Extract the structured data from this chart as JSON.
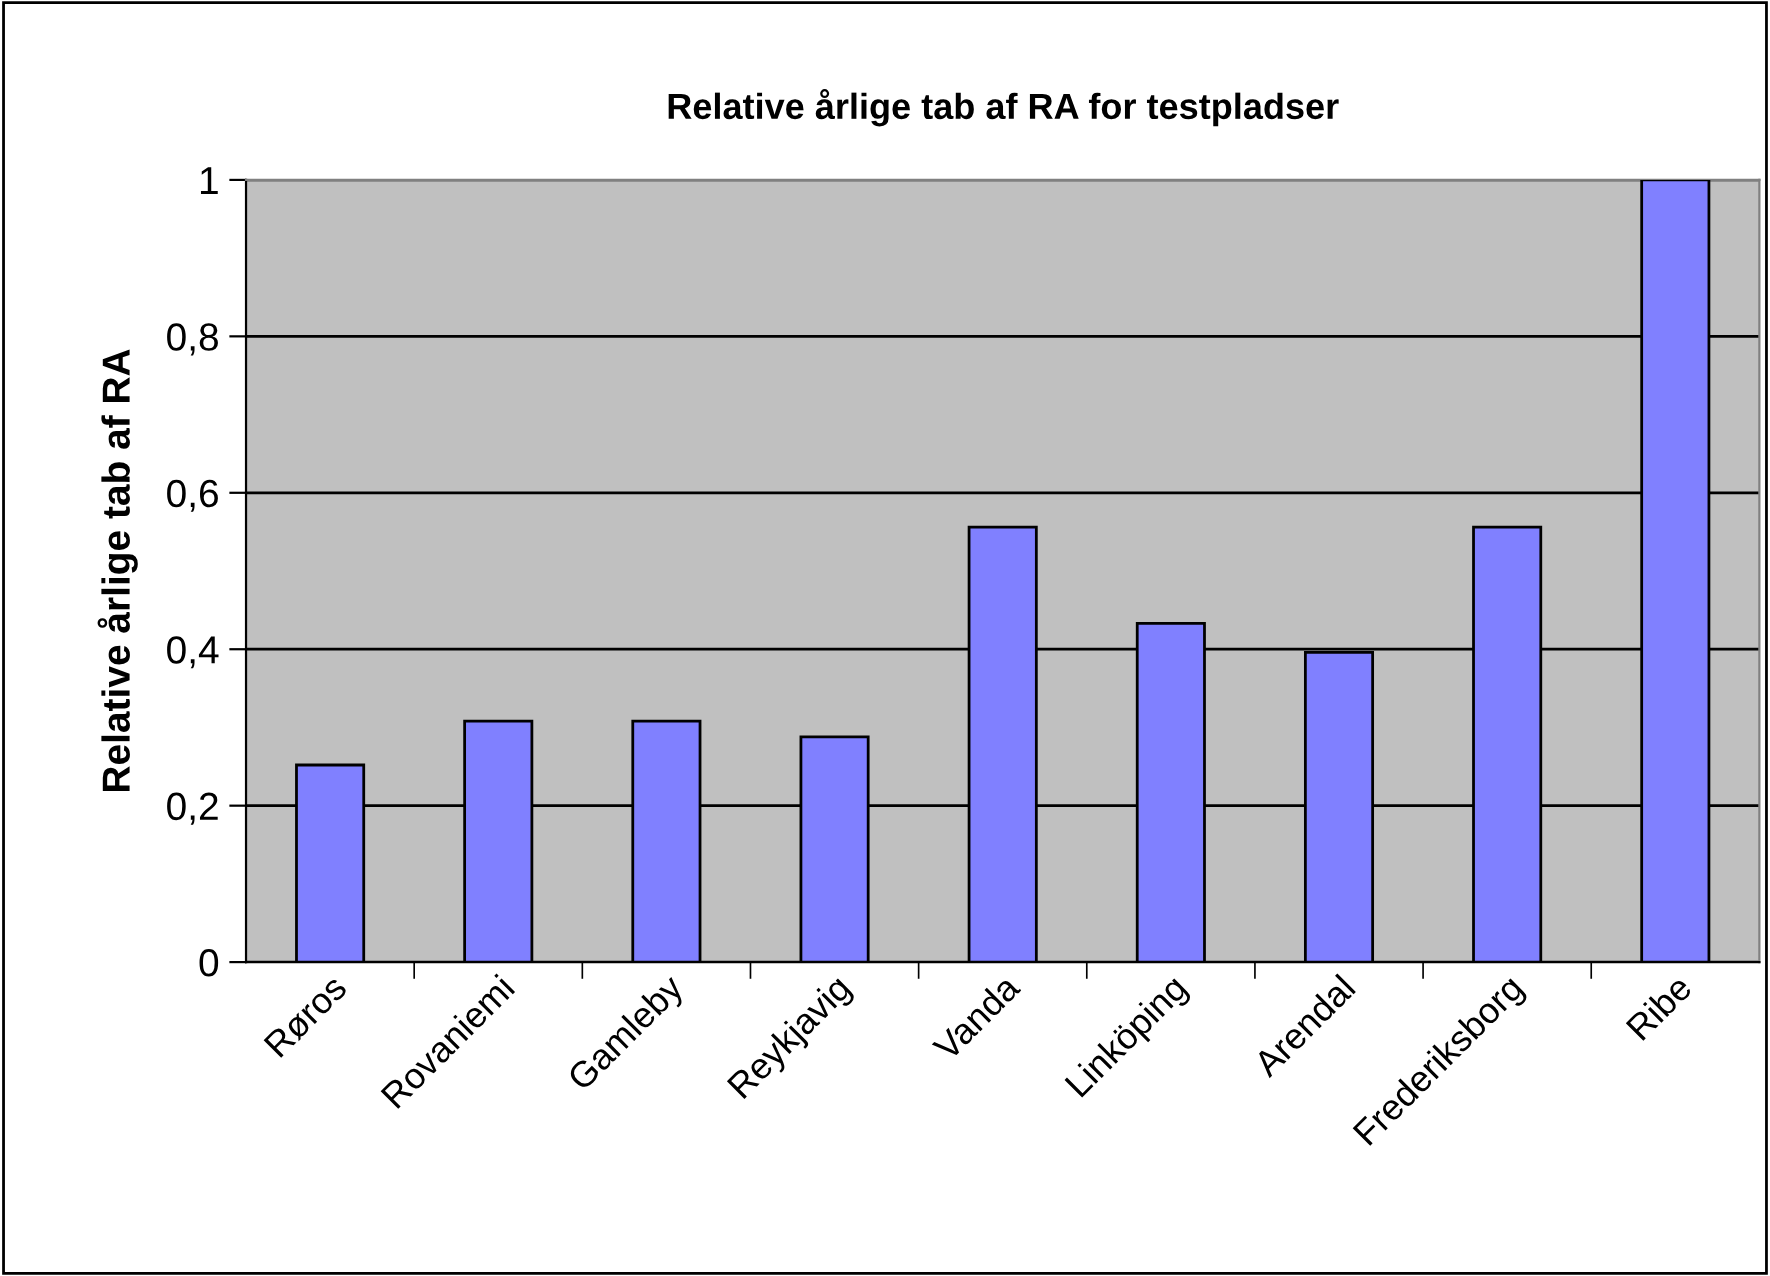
{
  "chart_data": {
    "type": "bar",
    "title": "Relative årlige tab af RA for testpladser",
    "ylabel": "Relative årlige tab af RA",
    "categories": [
      "Røros",
      "Rovaniemi",
      "Gamleby",
      "Reykjavig",
      "Vanda",
      "Linköping",
      "Arendal",
      "Frederiksborg",
      "Ribe"
    ],
    "values": [
      0.252,
      0.308,
      0.308,
      0.288,
      0.556,
      0.433,
      0.396,
      0.556,
      1
    ],
    "color": "#8080ff",
    "ylim": [
      0,
      1
    ],
    "yticks": [
      {
        "value": 0,
        "label": "0"
      },
      {
        "value": 0.2,
        "label": "0,2"
      },
      {
        "value": 0.4,
        "label": "0,4"
      },
      {
        "value": 0.6,
        "label": "0,6"
      },
      {
        "value": 0.8,
        "label": "0,8"
      },
      {
        "value": 1,
        "label": "1"
      }
    ],
    "grid": "y",
    "legend": false
  }
}
